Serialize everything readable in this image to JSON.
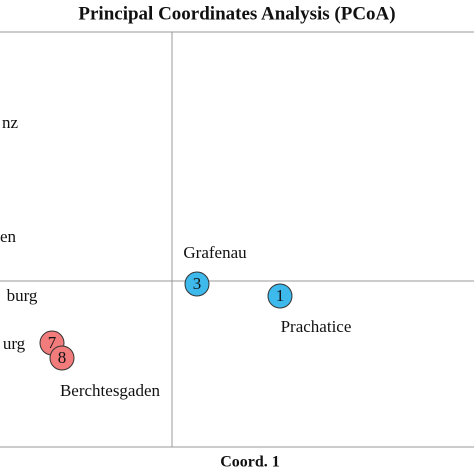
{
  "chart_data": {
    "type": "scatter",
    "title": "Principal Coordinates Analysis (PCoA)",
    "xlabel": "Coord. 1",
    "xlim": [
      -1.72,
      3.02
    ],
    "ylim": [
      -1.66,
      2.49
    ],
    "points": [
      {
        "id": "3",
        "label": "Grafenau",
        "x": 0.25,
        "y": -0.03,
        "color": "#3db9ec"
      },
      {
        "id": "1",
        "label": "Prachatice",
        "x": 1.08,
        "y": -0.15,
        "color": "#3db9ec"
      },
      {
        "id": "7",
        "label": null,
        "x": -1.2,
        "y": -0.62,
        "color": "#f27b7b"
      },
      {
        "id": "8",
        "label": "Berchtesgaden",
        "x": -1.1,
        "y": -0.77,
        "color": "#f27b7b"
      }
    ],
    "annotations": [
      "nz",
      "en",
      "burg",
      "urg"
    ]
  }
}
